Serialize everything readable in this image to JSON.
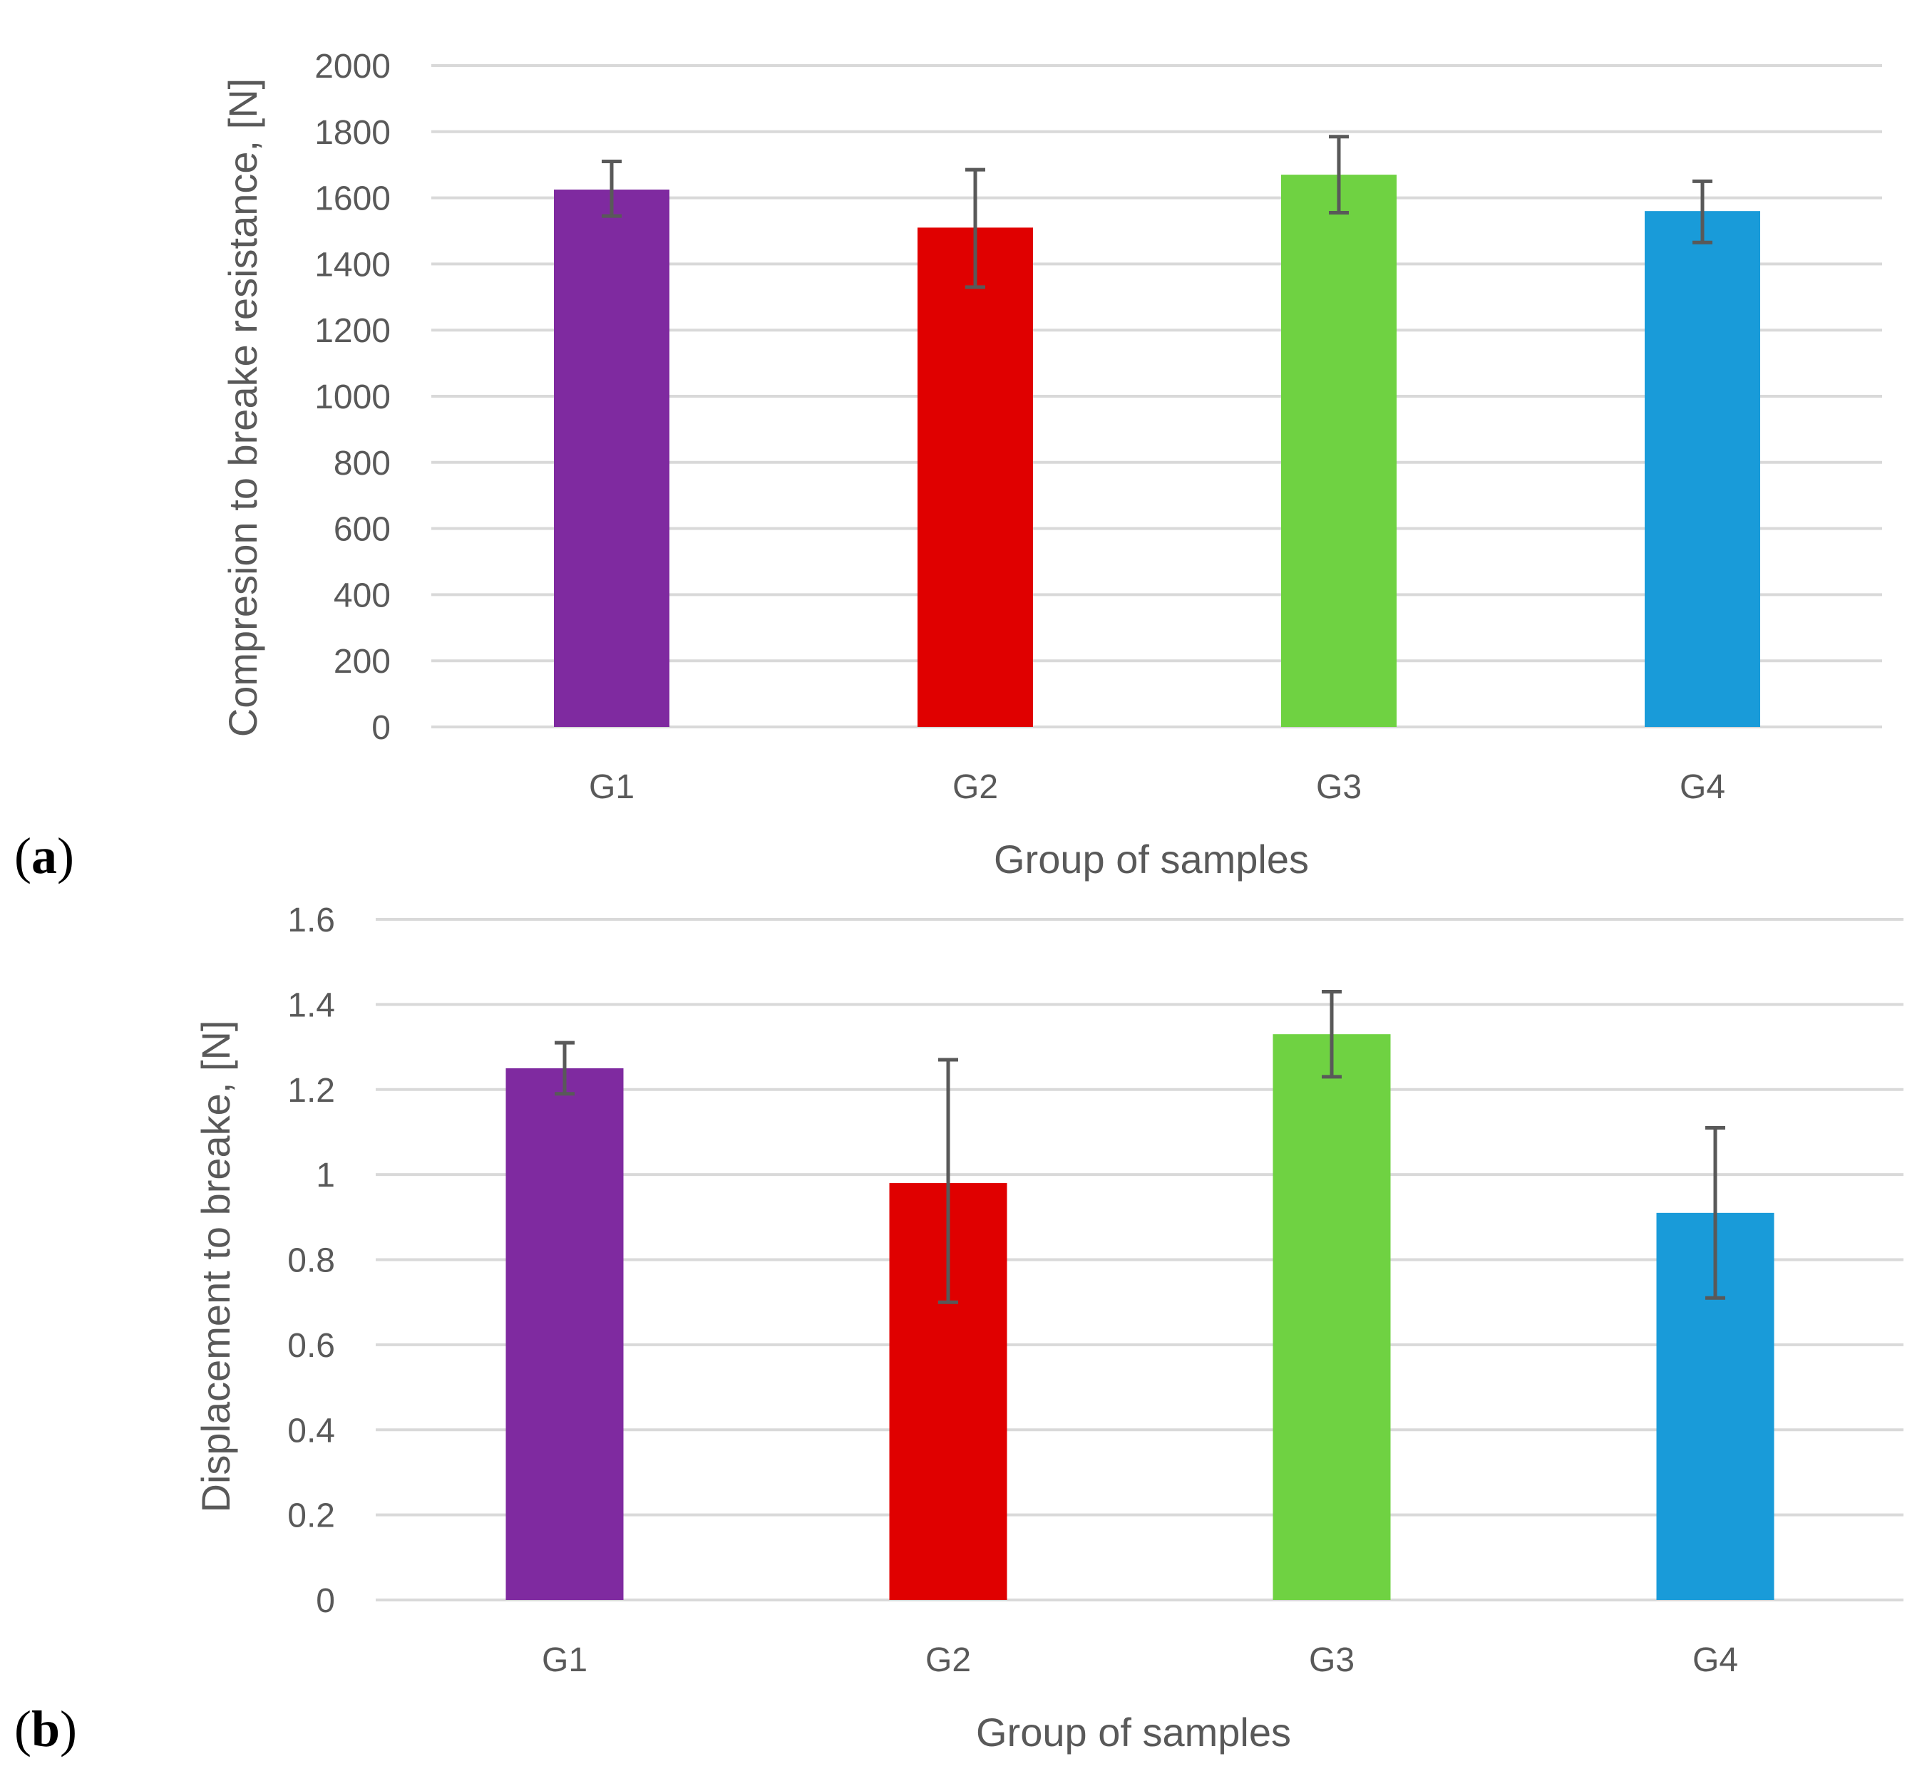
{
  "chart_data": [
    {
      "type": "bar",
      "panel_label": "a",
      "title": "",
      "categories": [
        "G1",
        "G2",
        "G3",
        "G4"
      ],
      "values": [
        1625,
        1510,
        1670,
        1560
      ],
      "errors": [
        [
          1545,
          1710
        ],
        [
          1330,
          1685
        ],
        [
          1555,
          1785
        ],
        [
          1465,
          1650
        ]
      ],
      "colors": [
        "#7f2aa0",
        "#e00000",
        "#6fd242",
        "#199bd9"
      ],
      "xlabel": "Group of samples",
      "ylabel": "Compresion to breake resistance, [N]",
      "ylim": [
        0,
        2000
      ],
      "yticks": [
        "0",
        "200",
        "400",
        "600",
        "800",
        "1000",
        "1200",
        "1400",
        "1600",
        "1800",
        "2000"
      ],
      "grid": true,
      "legend": "none"
    },
    {
      "type": "bar",
      "panel_label": "b",
      "title": "",
      "categories": [
        "G1",
        "G2",
        "G3",
        "G4"
      ],
      "values": [
        1.25,
        0.98,
        1.33,
        0.91
      ],
      "errors": [
        [
          1.19,
          1.31
        ],
        [
          0.7,
          1.27
        ],
        [
          1.23,
          1.43
        ],
        [
          0.71,
          1.11
        ]
      ],
      "colors": [
        "#7f2aa0",
        "#e00000",
        "#6fd242",
        "#199bd9"
      ],
      "xlabel": "Group of samples",
      "ylabel": "Displacement to breake, [N]",
      "ylim": [
        0,
        1.6
      ],
      "yticks": [
        "0",
        "0.2",
        "0.4",
        "0.6",
        "0.8",
        "1",
        "1.2",
        "1.4",
        "1.6"
      ],
      "grid": true,
      "legend": "none"
    }
  ]
}
